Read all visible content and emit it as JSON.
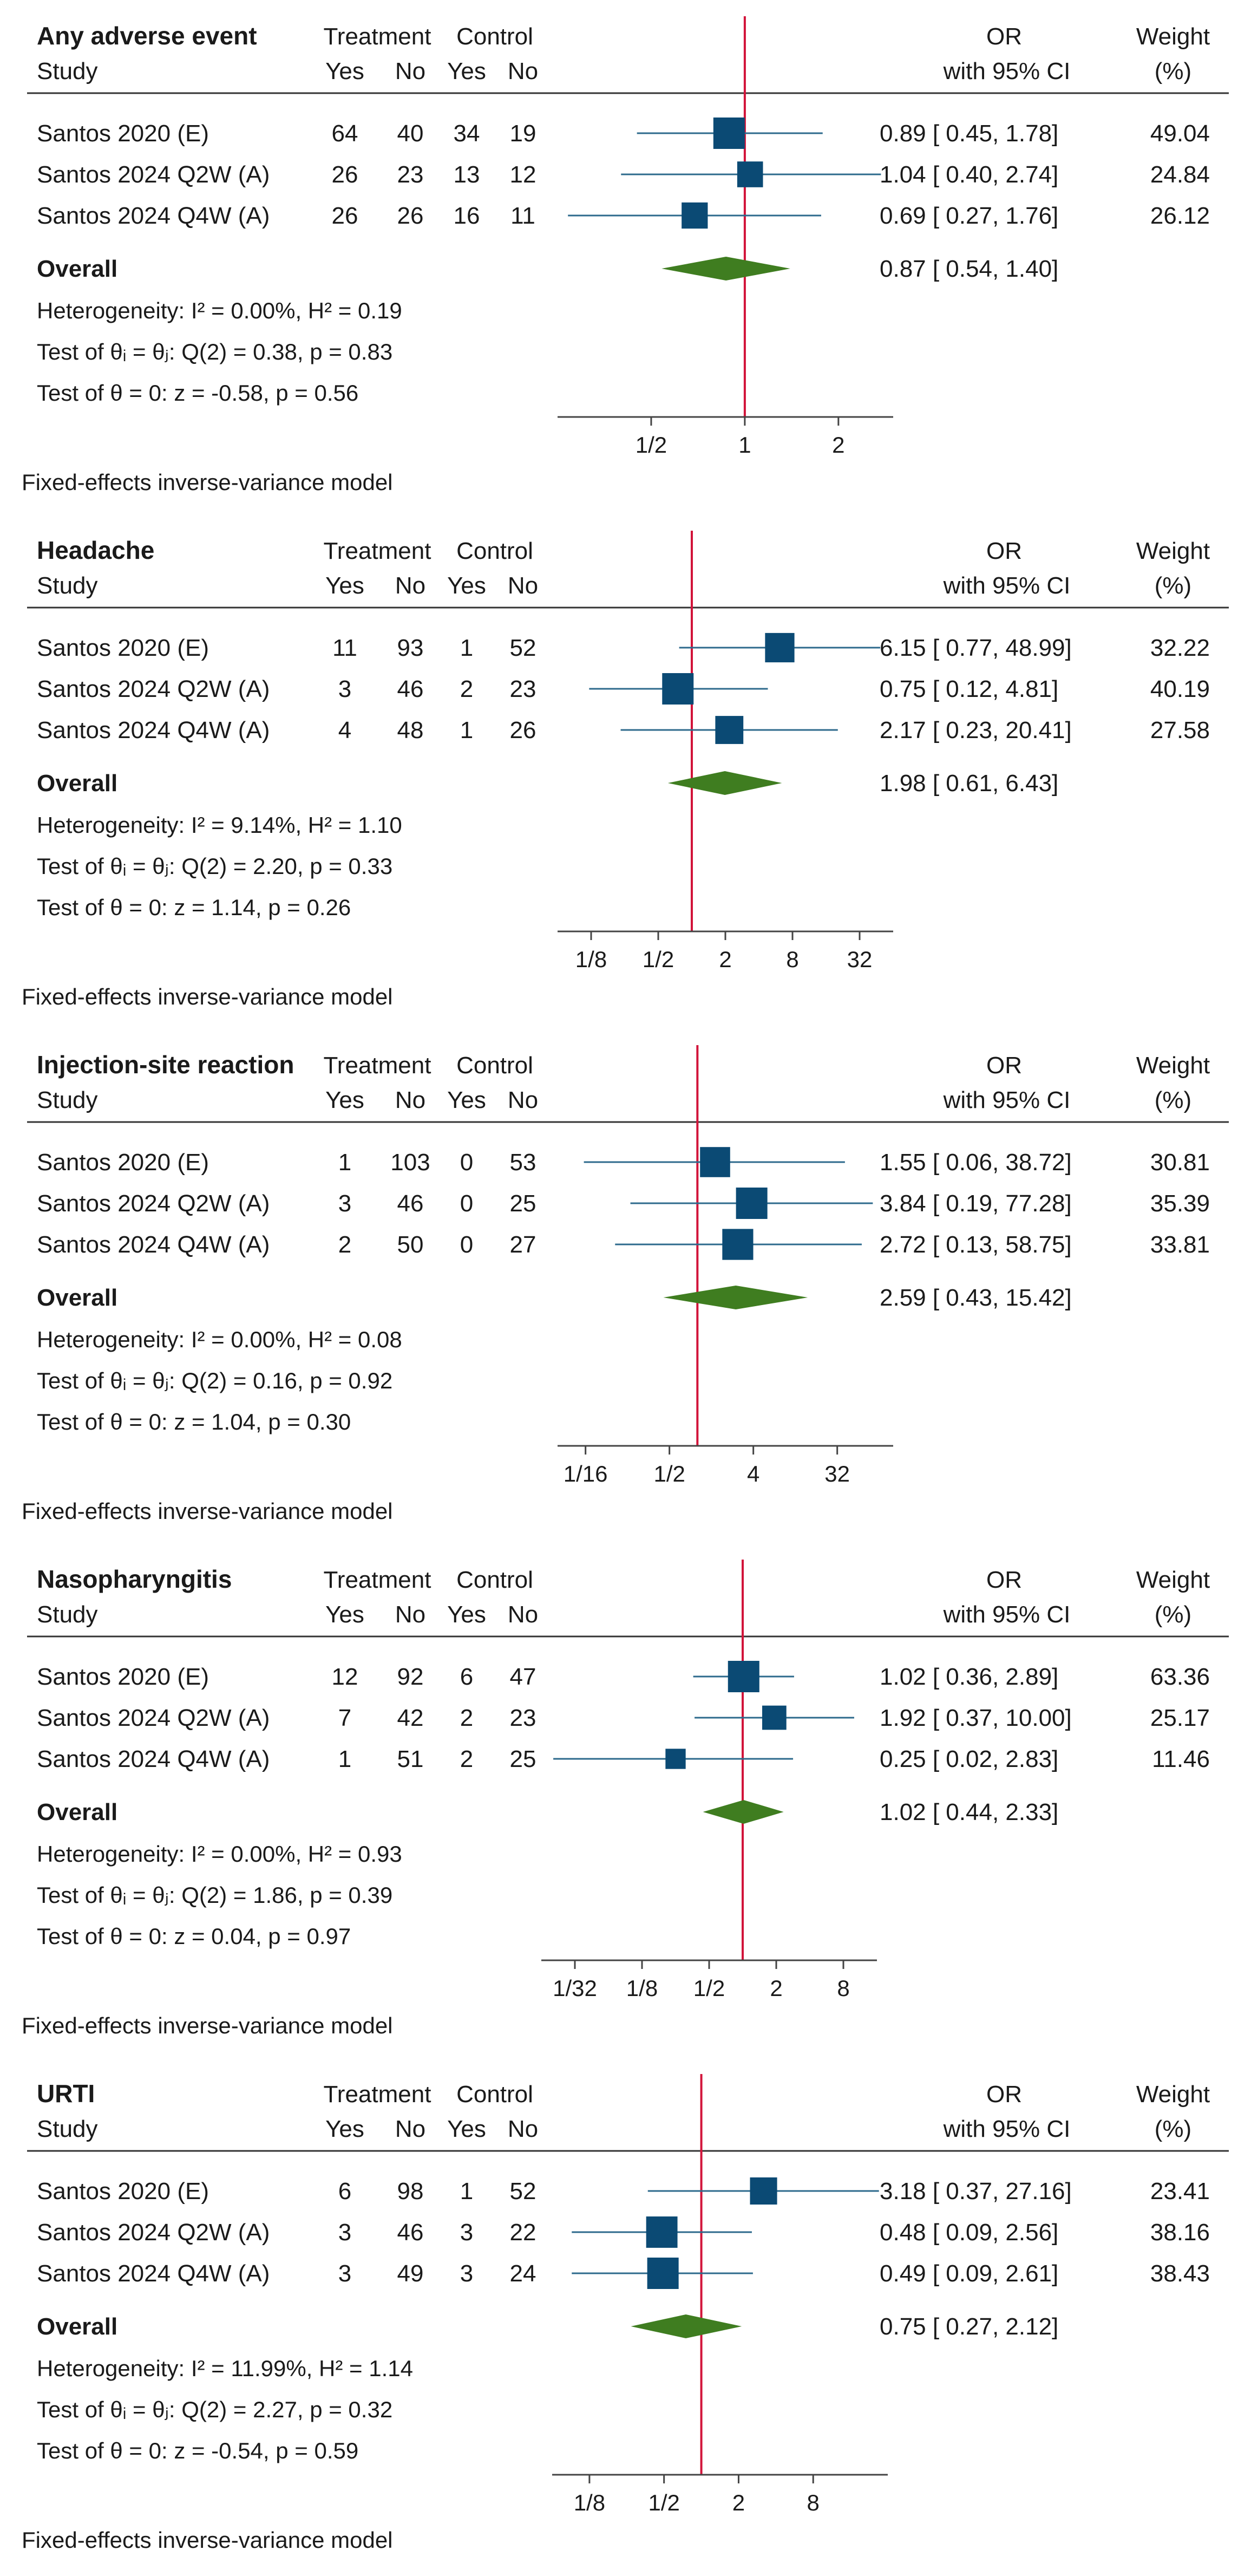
{
  "page": {
    "colors": {
      "square": "#0b4a74",
      "diamond": "#3f7d20",
      "ci_line": "#2d6a8c",
      "null_line": "#d2143a",
      "text": "#1a1a1a",
      "axis": "#444444"
    }
  },
  "headers": {
    "study": "Study",
    "treatment": "Treatment",
    "control": "Control",
    "yes": "Yes",
    "no": "No",
    "or": "OR",
    "ci": "with 95% CI",
    "weight": "Weight",
    "weight_unit": "(%)"
  },
  "chart_data": [
    {
      "type": "forest",
      "title": "Any adverse event",
      "footer": "Fixed-effects inverse-variance model",
      "xscale": "log",
      "xlim": [
        0.25,
        3.0
      ],
      "ticks": [
        {
          "value": 0.5,
          "label": "1/2"
        },
        {
          "value": 1,
          "label": "1"
        },
        {
          "value": 2,
          "label": "2"
        }
      ],
      "null_value": 1,
      "studies": [
        {
          "name": "Santos 2020 (E)",
          "t_yes": "64",
          "t_no": "40",
          "c_yes": "34",
          "c_no": "19",
          "or": 0.89,
          "lo": 0.45,
          "hi": 1.78,
          "ci_text": "0.89 [  0.45,  1.78]",
          "weight": "49.04"
        },
        {
          "name": "Santos 2024 Q2W (A)",
          "t_yes": "26",
          "t_no": "23",
          "c_yes": "13",
          "c_no": "12",
          "or": 1.04,
          "lo": 0.4,
          "hi": 2.74,
          "ci_text": "1.04 [  0.40,  2.74]",
          "weight": "24.84"
        },
        {
          "name": "Santos 2024 Q4W (A)",
          "t_yes": "26",
          "t_no": "26",
          "c_yes": "16",
          "c_no": "11",
          "or": 0.69,
          "lo": 0.27,
          "hi": 1.76,
          "ci_text": "0.69 [  0.27,  1.76]",
          "weight": "26.12"
        }
      ],
      "overall": {
        "label": "Overall",
        "or": 0.87,
        "lo": 0.54,
        "hi": 1.4,
        "ci_text": "0.87 [  0.54,  1.40]"
      },
      "stats": [
        "Heterogeneity: I² = 0.00%, H² = 0.19",
        "Test of θᵢ = θⱼ: Q(2) = 0.38, p = 0.83",
        "Test of θ = 0: z = -0.58, p = 0.56"
      ]
    },
    {
      "type": "forest",
      "title": "Headache",
      "footer": "Fixed-effects inverse-variance model",
      "xscale": "log",
      "xlim": [
        0.0625,
        64
      ],
      "ticks": [
        {
          "value": 0.125,
          "label": "1/8"
        },
        {
          "value": 0.5,
          "label": "1/2"
        },
        {
          "value": 2,
          "label": "2"
        },
        {
          "value": 8,
          "label": "8"
        },
        {
          "value": 32,
          "label": "32"
        }
      ],
      "null_value": 1,
      "studies": [
        {
          "name": "Santos 2020 (E)",
          "t_yes": "11",
          "t_no": "93",
          "c_yes": "1",
          "c_no": "52",
          "or": 6.15,
          "lo": 0.77,
          "hi": 48.99,
          "ci_text": "6.15 [  0.77,  48.99]",
          "weight": "32.22"
        },
        {
          "name": "Santos 2024 Q2W (A)",
          "t_yes": "3",
          "t_no": "46",
          "c_yes": "2",
          "c_no": "23",
          "or": 0.75,
          "lo": 0.12,
          "hi": 4.81,
          "ci_text": "0.75 [  0.12,    4.81]",
          "weight": "40.19"
        },
        {
          "name": "Santos 2024 Q4W (A)",
          "t_yes": "4",
          "t_no": "48",
          "c_yes": "1",
          "c_no": "26",
          "or": 2.17,
          "lo": 0.23,
          "hi": 20.41,
          "ci_text": "2.17 [  0.23,  20.41]",
          "weight": "27.58"
        }
      ],
      "overall": {
        "label": "Overall",
        "or": 1.98,
        "lo": 0.61,
        "hi": 6.43,
        "ci_text": "1.98 [  0.61,    6.43]"
      },
      "stats": [
        "Heterogeneity: I² = 9.14%, H² = 1.10",
        "Test of θᵢ = θⱼ: Q(2) = 2.20, p = 0.33",
        "Test of θ = 0: z = 1.14, p = 0.26"
      ]
    },
    {
      "type": "forest",
      "title": "Injection-site reaction",
      "footer": "Fixed-effects inverse-variance model",
      "xscale": "log",
      "xlim": [
        0.03125,
        128
      ],
      "ticks": [
        {
          "value": 0.0625,
          "label": "1/16"
        },
        {
          "value": 0.5,
          "label": "1/2"
        },
        {
          "value": 4,
          "label": "4"
        },
        {
          "value": 32,
          "label": "32"
        }
      ],
      "null_value": 1,
      "studies": [
        {
          "name": "Santos 2020 (E)",
          "t_yes": "1",
          "t_no": "103",
          "c_yes": "0",
          "c_no": "53",
          "or": 1.55,
          "lo": 0.06,
          "hi": 38.72,
          "ci_text": "1.55 [  0.06,  38.72]",
          "weight": "30.81"
        },
        {
          "name": "Santos 2024 Q2W (A)",
          "t_yes": "3",
          "t_no": "46",
          "c_yes": "0",
          "c_no": "25",
          "or": 3.84,
          "lo": 0.19,
          "hi": 77.28,
          "ci_text": "3.84 [  0.19,  77.28]",
          "weight": "35.39"
        },
        {
          "name": "Santos 2024 Q4W (A)",
          "t_yes": "2",
          "t_no": "50",
          "c_yes": "0",
          "c_no": "27",
          "or": 2.72,
          "lo": 0.13,
          "hi": 58.75,
          "ci_text": "2.72 [  0.13,  58.75]",
          "weight": "33.81"
        }
      ],
      "overall": {
        "label": "Overall",
        "or": 2.59,
        "lo": 0.43,
        "hi": 15.42,
        "ci_text": "2.59 [  0.43,  15.42]"
      },
      "stats": [
        "Heterogeneity: I² = 0.00%, H² = 0.08",
        "Test of θᵢ = θⱼ: Q(2) = 0.16, p = 0.92",
        "Test of θ = 0: z = 1.04, p = 0.30"
      ]
    },
    {
      "type": "forest",
      "title": "Nasopharyngitis",
      "footer": "Fixed-effects inverse-variance model",
      "xscale": "log",
      "xlim": [
        0.015625,
        16
      ],
      "ticks": [
        {
          "value": 0.03125,
          "label": "1/32"
        },
        {
          "value": 0.125,
          "label": "1/8"
        },
        {
          "value": 0.5,
          "label": "1/2"
        },
        {
          "value": 2,
          "label": "2"
        },
        {
          "value": 8,
          "label": "8"
        }
      ],
      "null_value": 1,
      "studies": [
        {
          "name": "Santos 2020 (E)",
          "t_yes": "12",
          "t_no": "92",
          "c_yes": "6",
          "c_no": "47",
          "or": 1.02,
          "lo": 0.36,
          "hi": 2.89,
          "ci_text": "1.02 [  0.36,    2.89]",
          "weight": "63.36"
        },
        {
          "name": "Santos 2024 Q2W (A)",
          "t_yes": "7",
          "t_no": "42",
          "c_yes": "2",
          "c_no": "23",
          "or": 1.92,
          "lo": 0.37,
          "hi": 10.0,
          "ci_text": "1.92 [  0.37,  10.00]",
          "weight": "25.17"
        },
        {
          "name": "Santos 2024 Q4W (A)",
          "t_yes": "1",
          "t_no": "51",
          "c_yes": "2",
          "c_no": "25",
          "or": 0.25,
          "lo": 0.02,
          "hi": 2.83,
          "ci_text": "0.25 [  0.02,    2.83]",
          "weight": "11.46"
        }
      ],
      "overall": {
        "label": "Overall",
        "or": 1.02,
        "lo": 0.44,
        "hi": 2.33,
        "ci_text": "1.02 [  0.44,    2.33]"
      },
      "stats": [
        "Heterogeneity: I² = 0.00%, H² = 0.93",
        "Test of θᵢ = θⱼ: Q(2) = 1.86, p = 0.39",
        "Test of θ = 0: z = 0.04, p = 0.97"
      ]
    },
    {
      "type": "forest",
      "title": "URTI",
      "footer": "Fixed-effects inverse-variance model",
      "xscale": "log",
      "xlim": [
        0.0625,
        32
      ],
      "ticks": [
        {
          "value": 0.125,
          "label": "1/8"
        },
        {
          "value": 0.5,
          "label": "1/2"
        },
        {
          "value": 2,
          "label": "2"
        },
        {
          "value": 8,
          "label": "8"
        }
      ],
      "null_value": 1,
      "studies": [
        {
          "name": "Santos 2020 (E)",
          "t_yes": "6",
          "t_no": "98",
          "c_yes": "1",
          "c_no": "52",
          "or": 3.18,
          "lo": 0.37,
          "hi": 27.16,
          "ci_text": "3.18 [  0.37,  27.16]",
          "weight": "23.41"
        },
        {
          "name": "Santos 2024 Q2W (A)",
          "t_yes": "3",
          "t_no": "46",
          "c_yes": "3",
          "c_no": "22",
          "or": 0.48,
          "lo": 0.09,
          "hi": 2.56,
          "ci_text": "0.48 [  0.09,    2.56]",
          "weight": "38.16"
        },
        {
          "name": "Santos 2024 Q4W (A)",
          "t_yes": "3",
          "t_no": "49",
          "c_yes": "3",
          "c_no": "24",
          "or": 0.49,
          "lo": 0.09,
          "hi": 2.61,
          "ci_text": "0.49 [  0.09,    2.61]",
          "weight": "38.43"
        }
      ],
      "overall": {
        "label": "Overall",
        "or": 0.75,
        "lo": 0.27,
        "hi": 2.12,
        "ci_text": "0.75 [  0.27,    2.12]"
      },
      "stats": [
        "Heterogeneity: I² = 11.99%, H² = 1.14",
        "Test of θᵢ = θⱼ: Q(2) = 2.27, p = 0.32",
        "Test of θ = 0: z = -0.54, p = 0.59"
      ]
    }
  ]
}
